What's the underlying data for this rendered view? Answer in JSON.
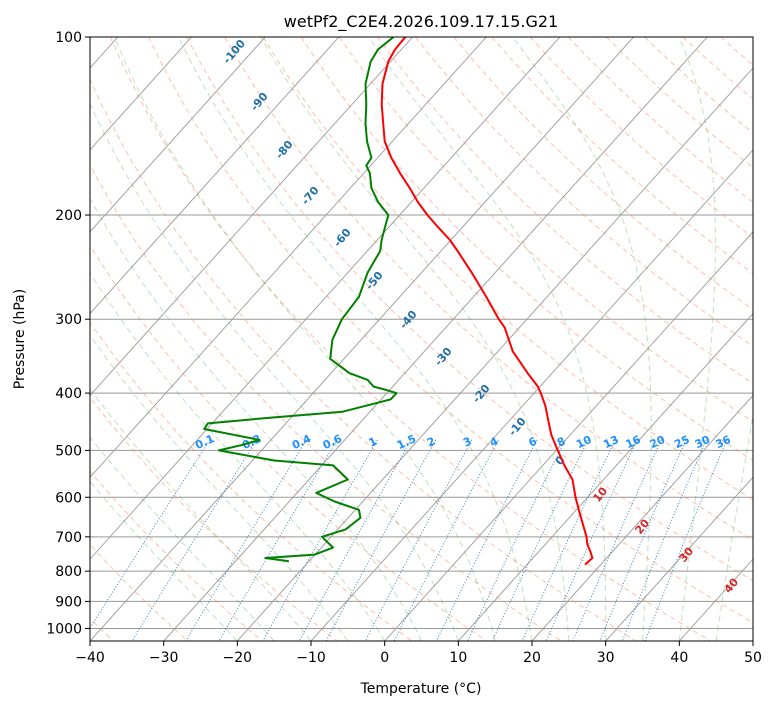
{
  "chart_data": {
    "type": "line",
    "title": "wetPf2_C2E4.2026.109.17.15.G21",
    "xlabel": "Temperature (°C)",
    "ylabel": "Pressure (hPa)",
    "xlim": [
      -40,
      50
    ],
    "ylim": [
      1050,
      100
    ],
    "y_scale": "log",
    "x_ticks": [
      "−40",
      "−30",
      "−20",
      "−10",
      "0",
      "10",
      "20",
      "30",
      "40",
      "50"
    ],
    "y_ticks": [
      "100",
      "200",
      "300",
      "400",
      "500",
      "600",
      "700",
      "800",
      "900",
      "1000"
    ],
    "grid": true,
    "series": [
      {
        "name": "",
        "color": "#ff0000",
        "points": [
          [
            2.8,
            100
          ],
          [
            1.4,
            105
          ],
          [
            0.5,
            110
          ],
          [
            -0.3,
            120
          ],
          [
            -0.4,
            130
          ],
          [
            -0.2,
            140
          ],
          [
            0,
            150
          ],
          [
            0.9,
            160
          ],
          [
            2.1,
            170
          ],
          [
            3.4,
            180
          ],
          [
            4.5,
            190
          ],
          [
            5.8,
            200
          ],
          [
            7.3,
            210
          ],
          [
            8.8,
            220
          ],
          [
            9.9,
            230
          ],
          [
            11.8,
            250
          ],
          [
            13.8,
            275
          ],
          [
            15.5,
            300
          ],
          [
            16.3,
            310
          ],
          [
            17.4,
            340
          ],
          [
            19.4,
            370
          ],
          [
            20.8,
            390
          ],
          [
            21.2,
            400
          ],
          [
            21.8,
            420
          ],
          [
            22.3,
            450
          ],
          [
            22.6,
            470
          ],
          [
            23.2,
            490
          ],
          [
            23.5,
            500
          ],
          [
            24.4,
            530
          ],
          [
            25.5,
            560
          ],
          [
            25.9,
            600
          ],
          [
            26.5,
            640
          ],
          [
            27.4,
            700
          ],
          [
            27.5,
            720
          ],
          [
            27.9,
            740
          ],
          [
            28.2,
            760
          ],
          [
            27.2,
            780
          ]
        ]
      },
      {
        "name": "",
        "color": "#008000",
        "points": [
          [
            1.2,
            100
          ],
          [
            -0.9,
            105
          ],
          [
            -1.9,
            110
          ],
          [
            -2.6,
            120
          ],
          [
            -2.5,
            130
          ],
          [
            -2.6,
            140
          ],
          [
            -2.4,
            150
          ],
          [
            -1.8,
            160
          ],
          [
            -2.5,
            165
          ],
          [
            -2,
            170
          ],
          [
            -1.8,
            180
          ],
          [
            -0.9,
            190
          ],
          [
            0.5,
            200
          ],
          [
            -0.4,
            220
          ],
          [
            -0.6,
            230
          ],
          [
            -2.3,
            250
          ],
          [
            -3.5,
            275
          ],
          [
            -5.8,
            300
          ],
          [
            -7.1,
            325
          ],
          [
            -7.4,
            350
          ],
          [
            -4.8,
            370
          ],
          [
            -2.3,
            380
          ],
          [
            -1.5,
            390
          ],
          [
            0.2,
            395
          ],
          [
            1.6,
            400
          ],
          [
            0.8,
            410
          ],
          [
            -5.7,
            430
          ],
          [
            -15.4,
            440
          ],
          [
            -24,
            450
          ],
          [
            -24.5,
            460
          ],
          [
            -17,
            480
          ],
          [
            -19.5,
            490
          ],
          [
            -22.5,
            500
          ],
          [
            -15,
            520
          ],
          [
            -7,
            530
          ],
          [
            -5,
            560
          ],
          [
            -9.3,
            590
          ],
          [
            -6.8,
            610
          ],
          [
            -3.5,
            630
          ],
          [
            -3.3,
            650
          ],
          [
            -5.3,
            680
          ],
          [
            -8.5,
            700
          ],
          [
            -7,
            730
          ],
          [
            -9.5,
            750
          ],
          [
            -16.2,
            760
          ],
          [
            -13,
            770
          ]
        ]
      }
    ],
    "dry_adiabat_labels": [
      "-100",
      "-90",
      "-80",
      "-70",
      "-60",
      "-50",
      "-40",
      "-30",
      "-20",
      "-10",
      "0",
      "10",
      "20",
      "30",
      "40"
    ],
    "mixing_ratio_labels": [
      "0.1",
      "0.2",
      "0.4",
      "0.6",
      "1",
      "1.5",
      "2",
      "3",
      "4",
      "6",
      "8",
      "10",
      "13",
      "16",
      "20",
      "25",
      "30",
      "36"
    ],
    "colors": {
      "dry_adiabat_label": "#1f6fa8",
      "moist_adiabat_label": "#d62728",
      "mixing_ratio_label": "#1e90ff",
      "mixing_ratio_line": "#1f77b4",
      "dry_adiabat_line": "#ff7f50",
      "moist_adiabat_line": "#2ca02c",
      "isotherm": "#999999"
    }
  }
}
